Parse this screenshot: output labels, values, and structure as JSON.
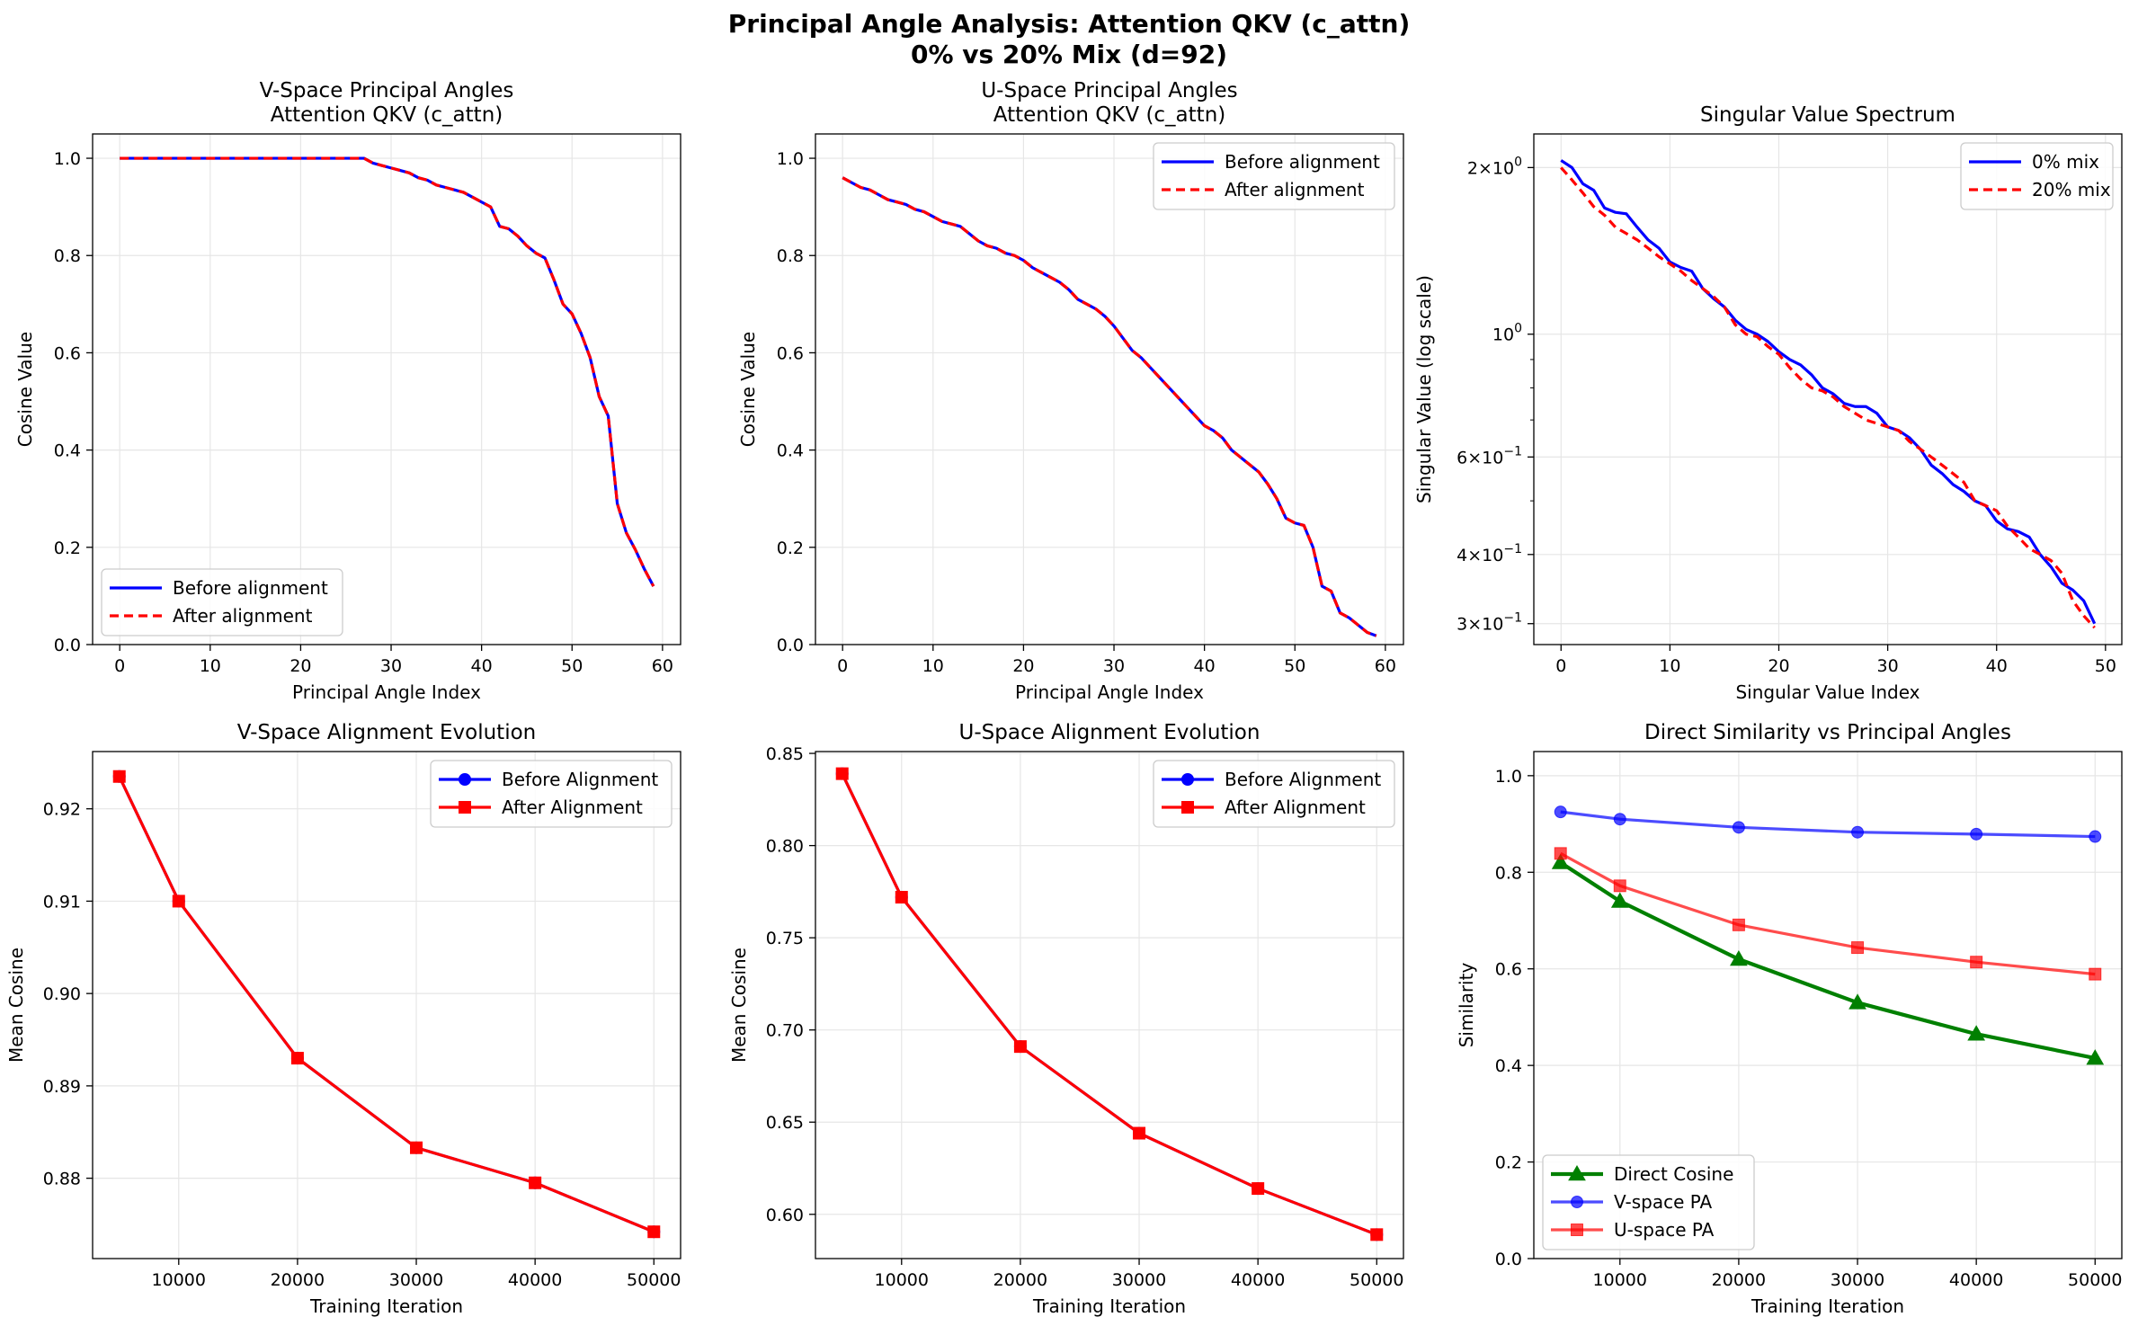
{
  "figure": {
    "title_line1": "Principal Angle Analysis: Attention QKV (c_attn)",
    "title_line2": "0% vs 20% Mix (d=92)"
  },
  "colors": {
    "blue": "#0000ff",
    "red": "#ff0000",
    "green": "#008000",
    "grid": "#e6e6e6"
  },
  "chart_data": [
    {
      "id": "vpa",
      "type": "line",
      "title_lines": [
        "V-Space Principal Angles",
        "Attention QKV (c_attn)"
      ],
      "xlabel": "Principal Angle Index",
      "ylabel": "Cosine Value",
      "xlim": [
        -3,
        62
      ],
      "ylim": [
        0,
        1.05
      ],
      "xticks": [
        0,
        10,
        20,
        30,
        40,
        50,
        60
      ],
      "yticks": [
        0.0,
        0.2,
        0.4,
        0.6,
        0.8,
        1.0
      ],
      "ytick_decimals": 1,
      "grid": true,
      "legend": "lower-left",
      "x": [
        0,
        1,
        2,
        3,
        4,
        5,
        6,
        7,
        8,
        9,
        10,
        11,
        12,
        13,
        14,
        15,
        16,
        17,
        18,
        19,
        20,
        21,
        22,
        23,
        24,
        25,
        26,
        27,
        28,
        29,
        30,
        31,
        32,
        33,
        34,
        35,
        36,
        37,
        38,
        39,
        40,
        41,
        42,
        43,
        44,
        45,
        46,
        47,
        48,
        49,
        50,
        51,
        52,
        53,
        54,
        55,
        56,
        57,
        58,
        59
      ],
      "series": [
        {
          "name": "Before alignment",
          "style": "solid-blue",
          "values": [
            1.0,
            1.0,
            1.0,
            1.0,
            1.0,
            1.0,
            1.0,
            1.0,
            1.0,
            1.0,
            1.0,
            1.0,
            1.0,
            1.0,
            1.0,
            1.0,
            1.0,
            1.0,
            1.0,
            1.0,
            1.0,
            1.0,
            1.0,
            1.0,
            1.0,
            1.0,
            1.0,
            1.0,
            0.99,
            0.985,
            0.98,
            0.975,
            0.97,
            0.96,
            0.955,
            0.945,
            0.94,
            0.935,
            0.93,
            0.92,
            0.91,
            0.9,
            0.86,
            0.855,
            0.84,
            0.82,
            0.805,
            0.795,
            0.75,
            0.7,
            0.68,
            0.64,
            0.59,
            0.51,
            0.47,
            0.29,
            0.23,
            0.195,
            0.155,
            0.12
          ]
        },
        {
          "name": "After alignment",
          "style": "dashed-red",
          "values": [
            1.0,
            1.0,
            1.0,
            1.0,
            1.0,
            1.0,
            1.0,
            1.0,
            1.0,
            1.0,
            1.0,
            1.0,
            1.0,
            1.0,
            1.0,
            1.0,
            1.0,
            1.0,
            1.0,
            1.0,
            1.0,
            1.0,
            1.0,
            1.0,
            1.0,
            1.0,
            1.0,
            1.0,
            0.99,
            0.985,
            0.98,
            0.975,
            0.97,
            0.96,
            0.955,
            0.945,
            0.94,
            0.935,
            0.93,
            0.92,
            0.91,
            0.9,
            0.86,
            0.855,
            0.84,
            0.82,
            0.805,
            0.795,
            0.75,
            0.7,
            0.68,
            0.64,
            0.59,
            0.51,
            0.47,
            0.29,
            0.23,
            0.195,
            0.155,
            0.12
          ]
        }
      ]
    },
    {
      "id": "upa",
      "type": "line",
      "title_lines": [
        "U-Space Principal Angles",
        "Attention QKV (c_attn)"
      ],
      "xlabel": "Principal Angle Index",
      "ylabel": "Cosine Value",
      "xlim": [
        -3,
        62
      ],
      "ylim": [
        0,
        1.05
      ],
      "xticks": [
        0,
        10,
        20,
        30,
        40,
        50,
        60
      ],
      "yticks": [
        0.0,
        0.2,
        0.4,
        0.6,
        0.8,
        1.0
      ],
      "ytick_decimals": 1,
      "grid": true,
      "legend": "top-right",
      "x": [
        0,
        1,
        2,
        3,
        4,
        5,
        6,
        7,
        8,
        9,
        10,
        11,
        12,
        13,
        14,
        15,
        16,
        17,
        18,
        19,
        20,
        21,
        22,
        23,
        24,
        25,
        26,
        27,
        28,
        29,
        30,
        31,
        32,
        33,
        34,
        35,
        36,
        37,
        38,
        39,
        40,
        41,
        42,
        43,
        44,
        45,
        46,
        47,
        48,
        49,
        50,
        51,
        52,
        53,
        54,
        55,
        56,
        57,
        58,
        59
      ],
      "series": [
        {
          "name": "Before alignment",
          "style": "solid-blue",
          "values": [
            0.96,
            0.95,
            0.94,
            0.935,
            0.925,
            0.915,
            0.91,
            0.905,
            0.895,
            0.89,
            0.88,
            0.87,
            0.865,
            0.86,
            0.845,
            0.83,
            0.82,
            0.815,
            0.805,
            0.8,
            0.79,
            0.775,
            0.765,
            0.755,
            0.745,
            0.73,
            0.71,
            0.7,
            0.69,
            0.675,
            0.655,
            0.63,
            0.605,
            0.59,
            0.57,
            0.55,
            0.53,
            0.51,
            0.49,
            0.47,
            0.45,
            0.44,
            0.425,
            0.4,
            0.385,
            0.37,
            0.355,
            0.33,
            0.3,
            0.26,
            0.25,
            0.245,
            0.2,
            0.12,
            0.11,
            0.065,
            0.055,
            0.04,
            0.025,
            0.018
          ]
        },
        {
          "name": "After alignment",
          "style": "dashed-red",
          "values": [
            0.96,
            0.95,
            0.94,
            0.935,
            0.925,
            0.915,
            0.91,
            0.905,
            0.895,
            0.89,
            0.88,
            0.87,
            0.865,
            0.86,
            0.845,
            0.83,
            0.82,
            0.815,
            0.805,
            0.8,
            0.79,
            0.775,
            0.765,
            0.755,
            0.745,
            0.73,
            0.71,
            0.7,
            0.69,
            0.675,
            0.655,
            0.63,
            0.605,
            0.59,
            0.57,
            0.55,
            0.53,
            0.51,
            0.49,
            0.47,
            0.45,
            0.44,
            0.425,
            0.4,
            0.385,
            0.37,
            0.355,
            0.33,
            0.3,
            0.26,
            0.25,
            0.245,
            0.2,
            0.12,
            0.11,
            0.065,
            0.055,
            0.04,
            0.025,
            0.018
          ]
        }
      ]
    },
    {
      "id": "svs",
      "type": "line",
      "title_lines": [
        "Singular Value Spectrum"
      ],
      "xlabel": "Singular Value Index",
      "ylabel": "Singular Value (log scale)",
      "yscale": "log",
      "xlim": [
        -2.5,
        51.5
      ],
      "ylim": [
        0.275,
        2.3
      ],
      "xticks": [
        0,
        10,
        20,
        30,
        40,
        50
      ],
      "yticks": [
        0.3,
        0.4,
        0.6,
        1,
        2
      ],
      "ytick_labels": [
        {
          "base": "3×10",
          "exp": "−1"
        },
        {
          "base": "4×10",
          "exp": "−1"
        },
        {
          "base": "6×10",
          "exp": "−1"
        },
        {
          "base": "10",
          "exp": "0"
        },
        {
          "base": "2×10",
          "exp": "0"
        }
      ],
      "grid": true,
      "legend": "top-right",
      "x": [
        0,
        1,
        2,
        3,
        4,
        5,
        6,
        7,
        8,
        9,
        10,
        11,
        12,
        13,
        14,
        15,
        16,
        17,
        18,
        19,
        20,
        21,
        22,
        23,
        24,
        25,
        26,
        27,
        28,
        29,
        30,
        31,
        32,
        33,
        34,
        35,
        36,
        37,
        38,
        39,
        40,
        41,
        42,
        43,
        44,
        45,
        46,
        47,
        48,
        49
      ],
      "series": [
        {
          "name": "0% mix",
          "style": "solid-blue",
          "values": [
            2.06,
            2.0,
            1.87,
            1.82,
            1.69,
            1.66,
            1.65,
            1.56,
            1.48,
            1.43,
            1.35,
            1.32,
            1.3,
            1.21,
            1.16,
            1.12,
            1.06,
            1.02,
            1.0,
            0.97,
            0.93,
            0.9,
            0.88,
            0.845,
            0.8,
            0.78,
            0.75,
            0.74,
            0.74,
            0.72,
            0.68,
            0.67,
            0.65,
            0.62,
            0.58,
            0.56,
            0.535,
            0.52,
            0.5,
            0.49,
            0.46,
            0.445,
            0.44,
            0.43,
            0.4,
            0.38,
            0.355,
            0.345,
            0.33,
            0.3
          ]
        },
        {
          "name": "20% mix",
          "style": "dashed-red",
          "values": [
            2.0,
            1.9,
            1.8,
            1.7,
            1.64,
            1.56,
            1.52,
            1.48,
            1.43,
            1.38,
            1.34,
            1.3,
            1.25,
            1.21,
            1.17,
            1.12,
            1.04,
            1.0,
            0.99,
            0.95,
            0.92,
            0.87,
            0.83,
            0.8,
            0.79,
            0.77,
            0.74,
            0.72,
            0.7,
            0.69,
            0.68,
            0.67,
            0.64,
            0.62,
            0.6,
            0.58,
            0.56,
            0.54,
            0.5,
            0.49,
            0.48,
            0.45,
            0.43,
            0.41,
            0.4,
            0.39,
            0.37,
            0.33,
            0.31,
            0.295
          ]
        }
      ]
    },
    {
      "id": "vevo",
      "type": "line",
      "title_lines": [
        "V-Space Alignment Evolution"
      ],
      "xlabel": "Training Iteration",
      "ylabel": "Mean Cosine",
      "xlim": [
        2750,
        52250
      ],
      "ylim": [
        0.8713,
        0.9262
      ],
      "xticks": [
        10000,
        20000,
        30000,
        40000,
        50000
      ],
      "yticks": [
        0.88,
        0.89,
        0.9,
        0.91,
        0.92
      ],
      "ytick_decimals": 2,
      "grid": true,
      "legend": "top-right",
      "x": [
        5000,
        10000,
        20000,
        30000,
        40000,
        50000
      ],
      "series": [
        {
          "name": "Before Alignment",
          "style": "blue-circle",
          "values": [
            0.9235,
            0.91,
            0.893,
            0.8833,
            0.8795,
            0.8742
          ]
        },
        {
          "name": "After Alignment",
          "style": "red-square",
          "values": [
            0.9235,
            0.91,
            0.893,
            0.8833,
            0.8795,
            0.8742
          ]
        }
      ]
    },
    {
      "id": "uevo",
      "type": "line",
      "title_lines": [
        "U-Space Alignment Evolution"
      ],
      "xlabel": "Training Iteration",
      "ylabel": "Mean Cosine",
      "xlim": [
        2750,
        52250
      ],
      "ylim": [
        0.576,
        0.851
      ],
      "xticks": [
        10000,
        20000,
        30000,
        40000,
        50000
      ],
      "yticks": [
        0.6,
        0.65,
        0.7,
        0.75,
        0.8,
        0.85
      ],
      "ytick_decimals": 2,
      "grid": true,
      "legend": "top-right",
      "x": [
        5000,
        10000,
        20000,
        30000,
        40000,
        50000
      ],
      "series": [
        {
          "name": "Before Alignment",
          "style": "blue-circle",
          "values": [
            0.839,
            0.772,
            0.691,
            0.644,
            0.614,
            0.589
          ]
        },
        {
          "name": "After Alignment",
          "style": "red-square",
          "values": [
            0.839,
            0.772,
            0.691,
            0.644,
            0.614,
            0.589
          ]
        }
      ]
    },
    {
      "id": "direct",
      "type": "line",
      "title_lines": [
        "Direct Similarity vs Principal Angles"
      ],
      "xlabel": "Training Iteration",
      "ylabel": "Similarity",
      "xlim": [
        2750,
        52250
      ],
      "ylim": [
        0,
        1.05
      ],
      "xticks": [
        10000,
        20000,
        30000,
        40000,
        50000
      ],
      "yticks": [
        0.0,
        0.2,
        0.4,
        0.6,
        0.8,
        1.0
      ],
      "ytick_decimals": 1,
      "grid": true,
      "legend": "lower-left",
      "x": [
        5000,
        10000,
        20000,
        30000,
        40000,
        50000
      ],
      "series": [
        {
          "name": "Direct Cosine",
          "style": "green-triangle",
          "values": [
            0.82,
            0.74,
            0.62,
            0.53,
            0.465,
            0.415
          ]
        },
        {
          "name": "V-space PA",
          "style": "blue-circle-light",
          "values": [
            0.925,
            0.91,
            0.893,
            0.883,
            0.879,
            0.874
          ]
        },
        {
          "name": "U-space PA",
          "style": "red-square-light",
          "values": [
            0.839,
            0.772,
            0.691,
            0.644,
            0.614,
            0.589
          ]
        }
      ]
    }
  ]
}
